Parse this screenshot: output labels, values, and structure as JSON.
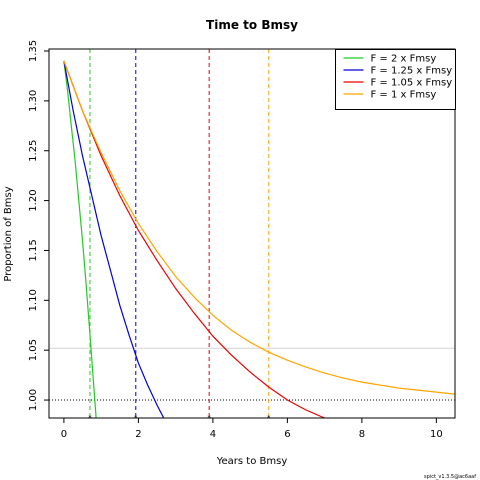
{
  "chart_data": {
    "type": "line",
    "title": "Time to Bmsy",
    "xlabel": "Years to Bmsy",
    "ylabel": "Proportion of Bmsy",
    "xlim": [
      -0.4,
      10.5
    ],
    "ylim": [
      0.982,
      1.352
    ],
    "x_ticks": [
      0,
      2,
      4,
      6,
      8,
      10
    ],
    "y_ticks": [
      1.0,
      1.05,
      1.1,
      1.15,
      1.2,
      1.25,
      1.3,
      1.35
    ],
    "grid": false,
    "legend_position": "top-right",
    "reference_lines": {
      "horizontal_dotted": 1.0,
      "horizontal_grey": 1.052
    },
    "series": [
      {
        "name": "F = 2 x Fmsy",
        "color": "#22cc22",
        "x": [
          0,
          0.1,
          0.2,
          0.3,
          0.4,
          0.5,
          0.6,
          0.7,
          0.8,
          0.9
        ],
        "y": [
          1.34,
          1.31,
          1.275,
          1.24,
          1.2,
          1.16,
          1.115,
          1.065,
          1.015,
          0.965
        ],
        "time_to_target": 0.7
      },
      {
        "name": "F = 1.25 x Fmsy",
        "color": "#0000dd",
        "x": [
          0,
          0.25,
          0.5,
          0.75,
          1.0,
          1.25,
          1.5,
          1.75,
          2.0,
          2.25,
          2.5,
          2.75,
          3.0
        ],
        "y": [
          1.34,
          1.29,
          1.245,
          1.205,
          1.165,
          1.13,
          1.095,
          1.065,
          1.037,
          1.015,
          0.995,
          0.977,
          0.96
        ],
        "time_to_target": 1.93
      },
      {
        "name": "F = 1.05 x Fmsy",
        "color": "#ee0000",
        "x": [
          0,
          0.5,
          1.0,
          1.5,
          2.0,
          2.5,
          3.0,
          3.5,
          4.0,
          4.5,
          5.0,
          5.5,
          6.0,
          6.5,
          7.0,
          7.5
        ],
        "y": [
          1.34,
          1.29,
          1.245,
          1.205,
          1.17,
          1.14,
          1.112,
          1.087,
          1.064,
          1.045,
          1.028,
          1.013,
          1.0,
          0.99,
          0.982,
          0.976
        ],
        "time_to_target": 3.9
      },
      {
        "name": "F = 1 x Fmsy",
        "color": "#ffa500",
        "x": [
          0,
          0.5,
          1.0,
          1.5,
          2.0,
          2.5,
          3.0,
          3.5,
          4.0,
          4.5,
          5.0,
          5.5,
          6.0,
          6.5,
          7.0,
          7.5,
          8.0,
          8.5,
          9.0,
          9.5,
          10.0,
          10.5
        ],
        "y": [
          1.34,
          1.29,
          1.248,
          1.21,
          1.177,
          1.149,
          1.124,
          1.103,
          1.085,
          1.07,
          1.058,
          1.048,
          1.04,
          1.033,
          1.027,
          1.022,
          1.018,
          1.015,
          1.012,
          1.01,
          1.008,
          1.006
        ],
        "time_to_target": 5.5
      }
    ]
  },
  "footer_text": "spict_v1.3.5@ac6aaf"
}
